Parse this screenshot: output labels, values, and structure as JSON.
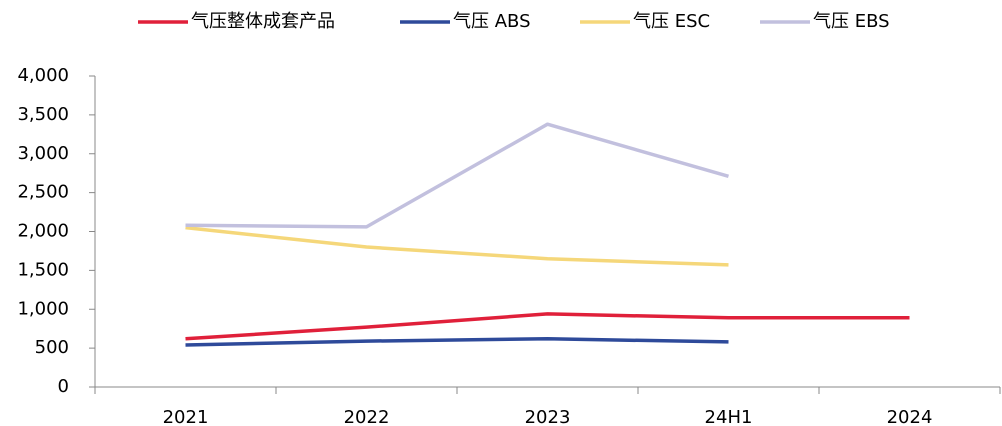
{
  "chart_data": {
    "type": "line",
    "categories": [
      "2021",
      "2022",
      "2023",
      "24H1",
      "2024"
    ],
    "series": [
      {
        "name": "气压整体成套产品",
        "color": "#e0203a",
        "values": [
          620,
          770,
          940,
          890,
          890
        ]
      },
      {
        "name": "气压 ABS",
        "color": "#2e4a9a",
        "values": [
          540,
          590,
          620,
          580,
          null
        ]
      },
      {
        "name": "气压 ESC",
        "color": "#f5d77a",
        "values": [
          2050,
          1800,
          1650,
          1570,
          null
        ]
      },
      {
        "name": "气压 EBS",
        "color": "#c2c0de",
        "values": [
          2080,
          2060,
          3380,
          2710,
          null
        ]
      }
    ],
    "ylim": [
      0,
      4000
    ],
    "yticks": [
      0,
      500,
      {
        "value": 1000,
        "label": "1,000"
      },
      {
        "value": 1500,
        "label": "1,500"
      },
      {
        "value": 2000,
        "label": "2,000"
      },
      {
        "value": 2500,
        "label": "2,500"
      },
      {
        "value": 3000,
        "label": "3,000"
      },
      {
        "value": 3500,
        "label": "3,500"
      },
      {
        "value": 4000,
        "label": "4,000"
      }
    ],
    "legend": "top",
    "grid": false
  }
}
